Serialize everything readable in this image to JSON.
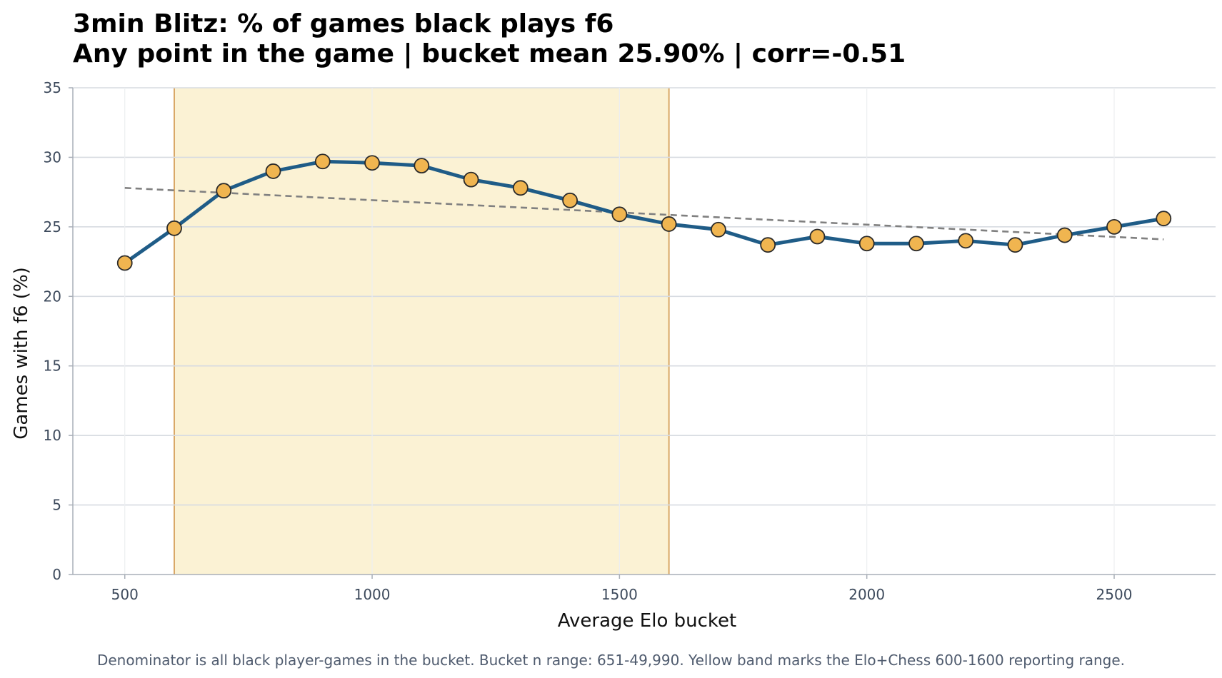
{
  "title": {
    "line1": "3min Blitz: % of games black plays f6",
    "line2": "Any point in the game | bucket mean 25.90% | corr=-0.51"
  },
  "footnote": "Denominator is all black player-games in the bucket. Bucket n range: 651-49,990. Yellow band marks the Elo+Chess 600-1600 reporting range.",
  "colors": {
    "line": "#1f5c87",
    "marker_fill": "#f0b550",
    "marker_edge": "#2a2a2a",
    "band_fill": "#fbf2d4",
    "band_edge": "#d9a866",
    "trend": "#808080",
    "grid": "#d7dbe1"
  },
  "chart_data": {
    "type": "line",
    "xlabel": "Average Elo bucket",
    "ylabel": "Games with f6 (%)",
    "xlim": [
      395,
      2705
    ],
    "ylim": [
      0,
      35
    ],
    "xticks": [
      500,
      1000,
      1500,
      2000,
      2500
    ],
    "yticks": [
      0,
      5,
      10,
      15,
      20,
      25,
      30,
      35
    ],
    "grid": true,
    "band": {
      "x0": 600,
      "x1": 1600
    },
    "trendline": {
      "x0": 500,
      "y0": 27.8,
      "x1": 2600,
      "y1": 24.1
    },
    "series": [
      {
        "x": [
          500,
          600,
          700,
          800,
          900,
          1000,
          1100,
          1200,
          1300,
          1400,
          1500,
          1600,
          1700,
          1800,
          1900,
          2000,
          2100,
          2200,
          2300,
          2400,
          2500,
          2600
        ],
        "values": [
          22.4,
          24.9,
          27.6,
          29.0,
          29.7,
          29.6,
          29.4,
          28.4,
          27.8,
          26.9,
          25.9,
          25.2,
          24.8,
          23.7,
          24.3,
          23.8,
          23.8,
          24.0,
          23.7,
          24.4,
          25.0,
          25.6
        ]
      }
    ]
  }
}
